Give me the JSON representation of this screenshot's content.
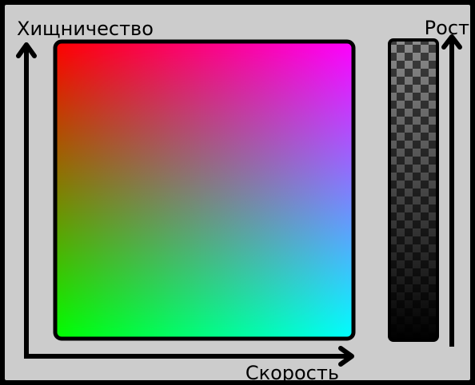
{
  "labels": {
    "predation_axis": "Хищничество",
    "speed_axis": "Скорость",
    "growth_axis": "Рост"
  },
  "colors": {
    "background": "#cccccc",
    "outline": "#000000",
    "corner_top_left": "#ff0000",
    "corner_top_right": "#ff00ff",
    "corner_bottom_left": "#00ff00",
    "corner_bottom_right": "#00ffff",
    "checker_light": "#8c8c8c",
    "checker_dark": "#3c3c3c",
    "growth_bar_fade": "#000000"
  }
}
